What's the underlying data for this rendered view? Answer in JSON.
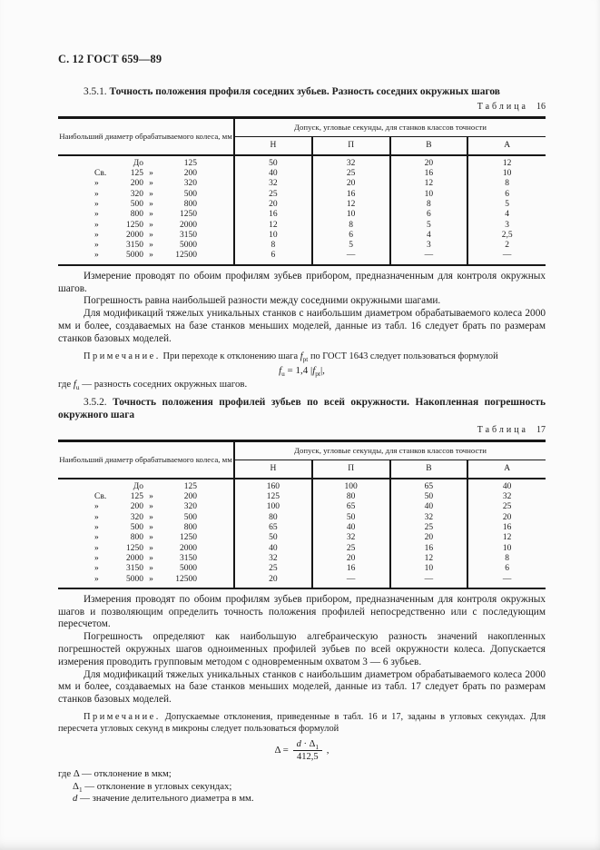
{
  "page": {
    "running_header": "С. 12 ГОСТ 659—89",
    "background_color": "#fbfbfb",
    "text_color": "#1c1c1c"
  },
  "section1": {
    "number": "3.5.1.",
    "title": "Точность положения профиля соседних зубьев. Разность соседних окружных шагов"
  },
  "table16": {
    "label_word": "Таблица",
    "label_num": "16",
    "col1_header": "Наибольший диаметр обрабатываемого колеса, мм",
    "span_header": "Допуск, угловые секунды, для станков классов точности",
    "classes": [
      "Н",
      "П",
      "В",
      "А"
    ],
    "rows": [
      {
        "p": "",
        "lo": "До",
        "s": "",
        "hi": "125",
        "v": [
          "50",
          "32",
          "20",
          "12"
        ]
      },
      {
        "p": "Св.",
        "lo": "125",
        "s": "»",
        "hi": "200",
        "v": [
          "40",
          "25",
          "16",
          "10"
        ]
      },
      {
        "p": "»",
        "lo": "200",
        "s": "»",
        "hi": "320",
        "v": [
          "32",
          "20",
          "12",
          "8"
        ]
      },
      {
        "p": "»",
        "lo": "320",
        "s": "»",
        "hi": "500",
        "v": [
          "25",
          "16",
          "10",
          "6"
        ]
      },
      {
        "p": "»",
        "lo": "500",
        "s": "»",
        "hi": "800",
        "v": [
          "20",
          "12",
          "8",
          "5"
        ]
      },
      {
        "p": "»",
        "lo": "800",
        "s": "»",
        "hi": "1250",
        "v": [
          "16",
          "10",
          "6",
          "4"
        ]
      },
      {
        "p": "»",
        "lo": "1250",
        "s": "»",
        "hi": "2000",
        "v": [
          "12",
          "8",
          "5",
          "3"
        ]
      },
      {
        "p": "»",
        "lo": "2000",
        "s": "»",
        "hi": "3150",
        "v": [
          "10",
          "6",
          "4",
          "2,5"
        ]
      },
      {
        "p": "»",
        "lo": "3150",
        "s": "»",
        "hi": "5000",
        "v": [
          "8",
          "5",
          "3",
          "2"
        ]
      },
      {
        "p": "»",
        "lo": "5000",
        "s": "»",
        "hi": "12500",
        "v": [
          "6",
          "—",
          "—",
          "—"
        ]
      }
    ]
  },
  "after16": {
    "p1": "Измерение проводят по обоим профилям зубьев прибором, предназначенным для контроля окружных шагов.",
    "p2": "Погрешность равна наибольшей разности между соседними окружными шагами.",
    "p3": "Для модификаций тяжелых уникальных станков с наибольшим диаметром обрабатываемого колеса 2000 мм и более, создаваемых на базе станков меньших моделей, данные из табл. 16 следует брать по размерам станков базовых моделей."
  },
  "note1": {
    "label": "Примечание.",
    "t1": " При переходе к отклонению шага ",
    "f_base": "f",
    "f_sub": "pt",
    "t2": " по ГОСТ 1643 следует пользоваться формулой"
  },
  "formula1": {
    "a": "f",
    "b": "u",
    "c": " = 1,4 |",
    "d": "f",
    "e": "pt",
    "f": "|,"
  },
  "note1_where": {
    "w1": "где ",
    "base": "f",
    "sub": "u",
    "w2": " — разность соседних окружных шагов."
  },
  "section2": {
    "number": "3.5.2.",
    "title": "Точность положения профилей зубьев по всей окружности. Накопленная погрешность окружного шага"
  },
  "table17": {
    "label_word": "Таблица",
    "label_num": "17",
    "col1_header": "Наибольший диаметр обрабатываемого колеса, мм",
    "span_header": "Допуск, угловые секунды, для станков классов точности",
    "classes": [
      "Н",
      "П",
      "В",
      "А"
    ],
    "rows": [
      {
        "p": "",
        "lo": "До",
        "s": "",
        "hi": "125",
        "v": [
          "160",
          "100",
          "65",
          "40"
        ]
      },
      {
        "p": "Св.",
        "lo": "125",
        "s": "»",
        "hi": "200",
        "v": [
          "125",
          "80",
          "50",
          "32"
        ]
      },
      {
        "p": "»",
        "lo": "200",
        "s": "»",
        "hi": "320",
        "v": [
          "100",
          "65",
          "40",
          "25"
        ]
      },
      {
        "p": "»",
        "lo": "320",
        "s": "»",
        "hi": "500",
        "v": [
          "80",
          "50",
          "32",
          "20"
        ]
      },
      {
        "p": "»",
        "lo": "500",
        "s": "»",
        "hi": "800",
        "v": [
          "65",
          "40",
          "25",
          "16"
        ]
      },
      {
        "p": "»",
        "lo": "800",
        "s": "»",
        "hi": "1250",
        "v": [
          "50",
          "32",
          "20",
          "12"
        ]
      },
      {
        "p": "»",
        "lo": "1250",
        "s": "»",
        "hi": "2000",
        "v": [
          "40",
          "25",
          "16",
          "10"
        ]
      },
      {
        "p": "»",
        "lo": "2000",
        "s": "»",
        "hi": "3150",
        "v": [
          "32",
          "20",
          "12",
          "8"
        ]
      },
      {
        "p": "»",
        "lo": "3150",
        "s": "»",
        "hi": "5000",
        "v": [
          "25",
          "16",
          "10",
          "6"
        ]
      },
      {
        "p": "»",
        "lo": "5000",
        "s": "»",
        "hi": "12500",
        "v": [
          "20",
          "—",
          "—",
          "—"
        ]
      }
    ]
  },
  "after17": {
    "p1": "Измерения проводят по обоим профилям зубьев прибором, предназначенным для контроля окружных шагов и позволяющим определить точность положения профилей непосредственно или с последующим пересчетом.",
    "p2": "Погрешность определяют как наибольшую алгебраическую разность значений накопленных погрешностей окружных шагов одноименных профилей зубьев по всей окружности колеса. Допускается измерения проводить групповым методом с одновременным охватом 3 — 6 зубьев.",
    "p3": "Для модификаций тяжелых уникальных станков с наибольшим диаметром обрабатываемого колеса 2000 мм и более, создаваемых на базе станков меньших моделей, данные из табл. 17 следует брать по размерам станков базовых моделей."
  },
  "note2": {
    "label": "Примечание.",
    "text": " Допускаемые отклонения, приведенные в табл. 16 и 17, заданы в угловых секундах. Для пересчета угловых секунд в микроны следует пользоваться формулой"
  },
  "formula2": {
    "lhs": "Δ = ",
    "n1": "d",
    "n2": " · Δ",
    "nsub": "1",
    "den": "412,5",
    "tail": " ,"
  },
  "note2_where": {
    "l1_pre": "где ",
    "l1_sym": "Δ",
    "l1_desc": " — отклонение в мкм;",
    "l2_sym": "Δ",
    "l2_sub": "1",
    "l2_desc": " — отклонение в угловых секундах;",
    "l3_sym": "d",
    "l3_desc": " — значение делительного диаметра в мм."
  }
}
